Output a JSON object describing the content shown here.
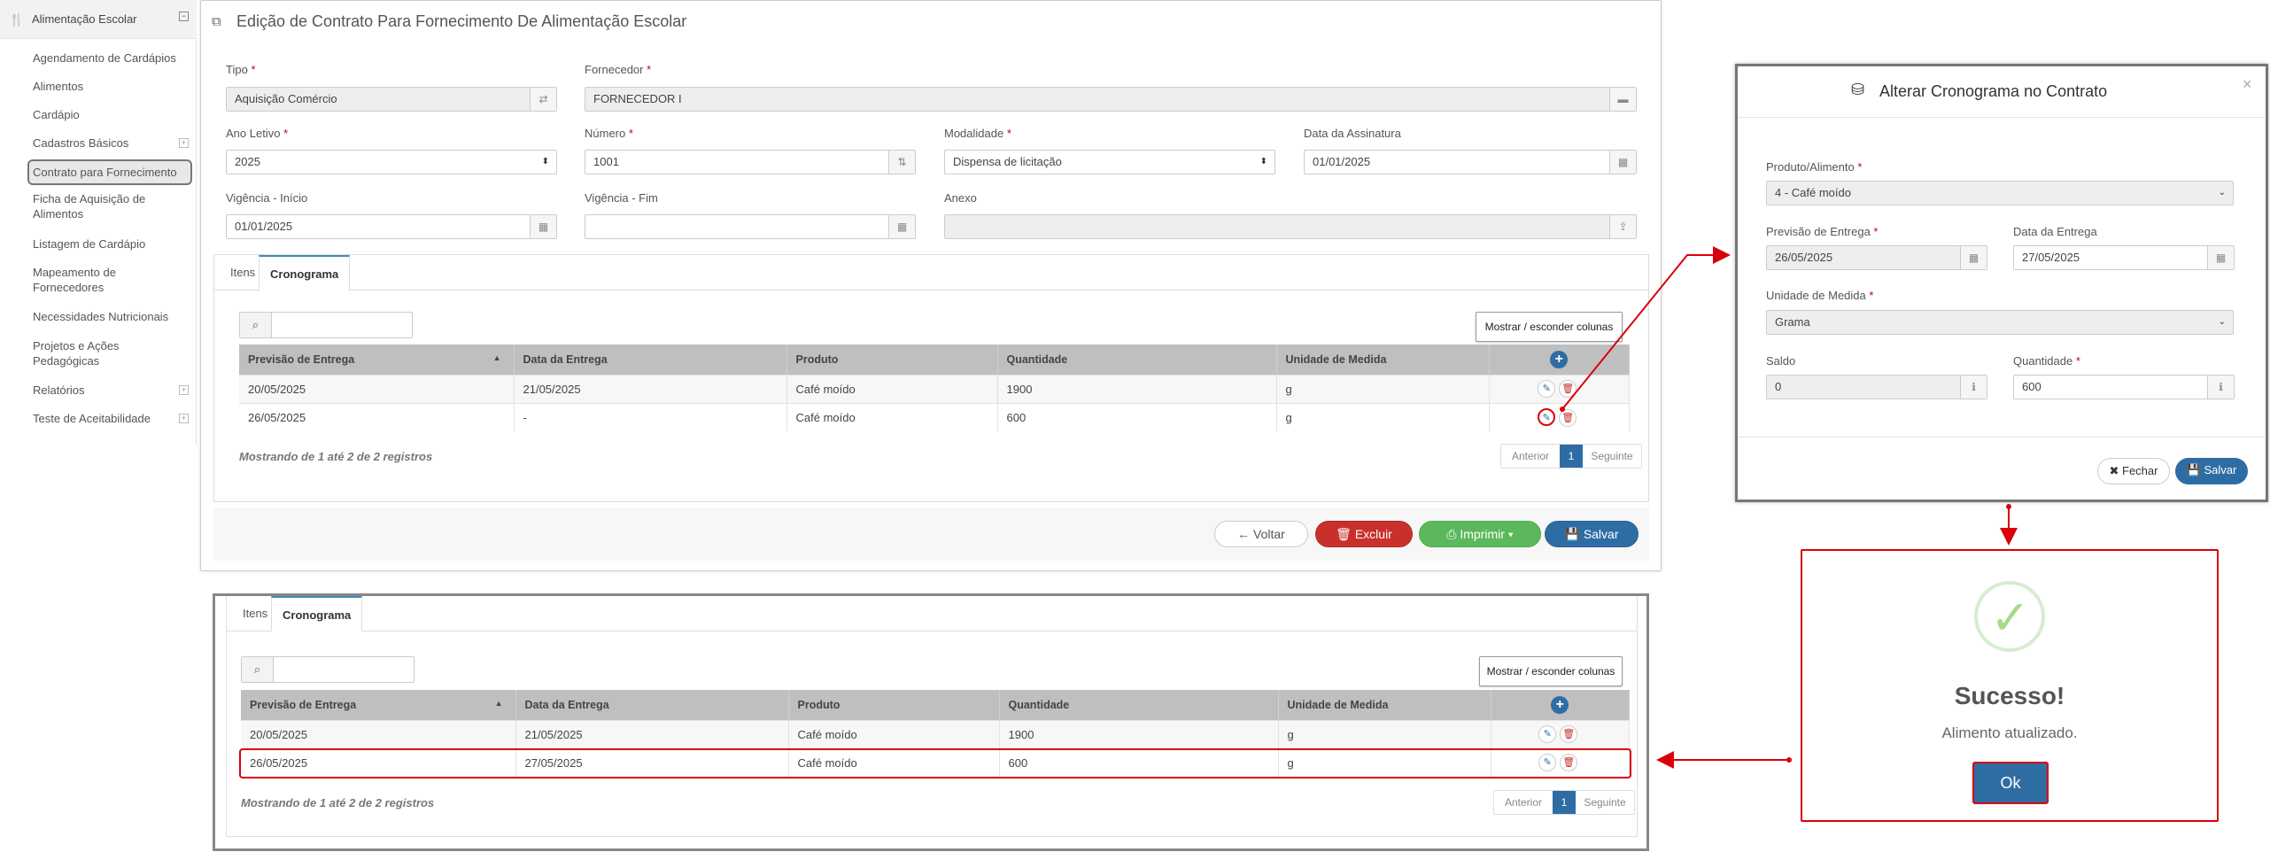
{
  "sidebar": {
    "app_title": "Alimentação Escolar",
    "items": [
      {
        "label": "Agendamento de Cardápios",
        "expand": false
      },
      {
        "label": "Alimentos",
        "expand": false
      },
      {
        "label": "Cardápio",
        "expand": false
      },
      {
        "label": "Cadastros Básicos",
        "expand": true
      },
      {
        "label": "Contrato para Fornecimento",
        "expand": false,
        "active": true
      },
      {
        "label": "Ficha de Aquisição de Alimentos",
        "expand": false
      },
      {
        "label": "Listagem de Cardápio",
        "expand": false
      },
      {
        "label": "Mapeamento de Fornecedores",
        "expand": false
      },
      {
        "label": "Necessidades Nutricionais",
        "expand": false
      },
      {
        "label": "Projetos e Ações Pedagógicas",
        "expand": false
      },
      {
        "label": "Relatórios",
        "expand": true
      },
      {
        "label": "Teste de Aceitabilidade",
        "expand": true
      }
    ]
  },
  "form": {
    "title": "Edição de Contrato Para Fornecimento De Alimentação Escolar",
    "tipo_label": "Tipo",
    "tipo_value": "Aquisição Comércio",
    "fornecedor_label": "Fornecedor",
    "fornecedor_value": "FORNECEDOR I",
    "ano_label": "Ano Letivo",
    "ano_value": "2025",
    "numero_label": "Número",
    "numero_value": "1001",
    "modalidade_label": "Modalidade",
    "modalidade_value": "Dispensa de licitação",
    "assinatura_label": "Data da Assinatura",
    "assinatura_value": "01/01/2025",
    "vig_inicio_label": "Vigência - Início",
    "vig_inicio_value": "01/01/2025",
    "vig_fim_label": "Vigência - Fim",
    "vig_fim_value": "",
    "anexo_label": "Anexo",
    "anexo_value": ""
  },
  "tabs": {
    "itens": "Itens",
    "cronograma": "Cronograma"
  },
  "grid": {
    "columns_button": "Mostrar / esconder colunas",
    "headers": [
      "Previsão de Entrega",
      "Data da Entrega",
      "Produto",
      "Quantidade",
      "Unidade de Medida"
    ],
    "rows_before": [
      [
        "20/05/2025",
        "21/05/2025",
        "Café moído",
        "1900",
        "g"
      ],
      [
        "26/05/2025",
        "-",
        "Café moído",
        "600",
        "g"
      ]
    ],
    "rows_after": [
      [
        "20/05/2025",
        "21/05/2025",
        "Café moído",
        "1900",
        "g"
      ],
      [
        "26/05/2025",
        "27/05/2025",
        "Café moído",
        "600",
        "g"
      ]
    ],
    "footer": "Mostrando de 1 até 2 de 2 registros",
    "pager": {
      "prev": "Anterior",
      "page": "1",
      "next": "Seguinte"
    }
  },
  "actions": {
    "voltar": "Voltar",
    "excluir": "Excluir",
    "imprimir": "Imprimir",
    "salvar": "Salvar"
  },
  "modal": {
    "title": "Alterar Cronograma no Contrato",
    "produto_label": "Produto/Alimento",
    "produto_value": "4 - Café moído",
    "previsao_label": "Previsão de Entrega",
    "previsao_value": "26/05/2025",
    "data_entrega_label": "Data da Entrega",
    "data_entrega_value": "27/05/2025",
    "unidade_label": "Unidade de Medida",
    "unidade_value": "Grama",
    "saldo_label": "Saldo",
    "saldo_value": "0",
    "quantidade_label": "Quantidade",
    "quantidade_value": "600",
    "fechar": "Fechar",
    "salvar": "Salvar",
    "close": "×"
  },
  "success": {
    "title": "Sucesso!",
    "message": "Alimento atualizado.",
    "ok": "Ok"
  },
  "colors": {
    "primary": "#2e6da4",
    "danger": "#c9302c",
    "success": "#5cb85c",
    "highlight": "#d9000b"
  }
}
